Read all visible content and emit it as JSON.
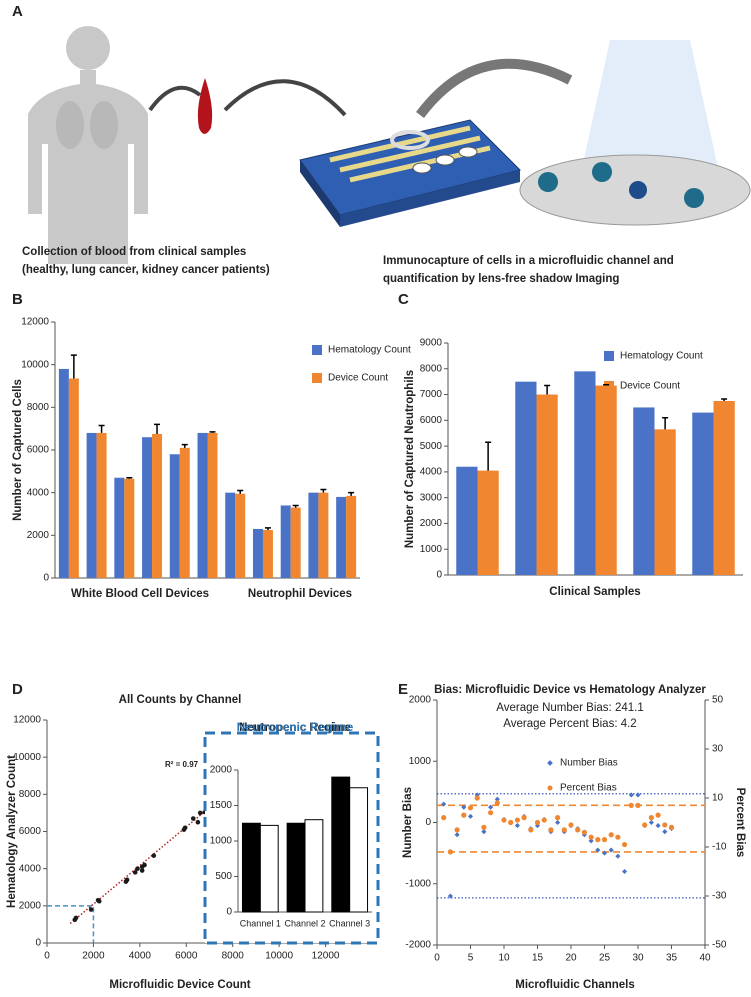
{
  "panel_a": {
    "label": "A",
    "captions": [
      "Collection of blood from clinical samples",
      "(healthy, lung cancer, kidney cancer patients)",
      "Immunocapture of cells in a microfluidic channel and",
      "quantification by lens-free shadow Imaging"
    ]
  },
  "chart_data": [
    {
      "type": "bar",
      "label": "B",
      "y_label": "Number of Captured Cells",
      "group_labels": [
        "White Blood Cell Devices",
        "Neutrophil Devices"
      ],
      "categories": [
        null,
        null,
        null,
        null,
        null,
        null,
        null,
        null,
        null,
        null,
        null
      ],
      "series": [
        {
          "name": "Hematology Count",
          "color": "#4a72c6",
          "values": [
            9800,
            6800,
            4700,
            6600,
            5800,
            6800,
            4000,
            2300,
            3400,
            4000,
            3800
          ]
        },
        {
          "name": "Device Count",
          "color": "#f0862f",
          "values": [
            9350,
            6800,
            4650,
            6750,
            6100,
            6800,
            3950,
            2250,
            3300,
            4000,
            3850
          ],
          "errors": [
            1100,
            350,
            50,
            450,
            150,
            50,
            150,
            100,
            100,
            150,
            150
          ]
        }
      ],
      "ylim": [
        0,
        12000
      ],
      "yticks": [
        0,
        2000,
        4000,
        6000,
        8000,
        10000,
        12000
      ]
    },
    {
      "type": "bar",
      "label": "C",
      "y_label": "Number of Captured Neutrophils",
      "x_label": "Clinical   Samples",
      "categories": [
        null,
        null,
        null,
        null,
        null
      ],
      "series": [
        {
          "name": "Hematology Count",
          "color": "#4a72c6",
          "values": [
            4200,
            7500,
            7900,
            6500,
            6300
          ]
        },
        {
          "name": "Device Count",
          "color": "#f0862f",
          "values": [
            4050,
            7000,
            7350,
            5650,
            6750
          ],
          "errors": [
            1100,
            350,
            30,
            450,
            80
          ]
        }
      ],
      "ylim": [
        0,
        9000
      ],
      "yticks": [
        0,
        1000,
        2000,
        3000,
        4000,
        5000,
        6000,
        7000,
        8000,
        9000
      ]
    },
    {
      "type": "scatter",
      "label": "D",
      "title": "All Counts by Channel",
      "x_label": "Microfluidic Device Count",
      "y_label": "Hematology Analyzer Count",
      "annotation": "R² = 0.97",
      "x": [
        1200,
        1250,
        1900,
        2200,
        2250,
        3400,
        3450,
        3800,
        3900,
        4100,
        4100,
        4200,
        4600,
        5900,
        5950,
        6300,
        6500,
        6600,
        6800,
        6900,
        6900,
        7400,
        7600,
        9800,
        9800
      ],
      "series": [
        {
          "color": "#1a1a1a",
          "marker": "circle",
          "values": [
            1250,
            1350,
            1800,
            2300,
            2250,
            3300,
            3400,
            3800,
            4000,
            3900,
            4100,
            4200,
            4700,
            6100,
            6200,
            6700,
            6500,
            7000,
            7050,
            6800,
            7050,
            7050,
            7300,
            10150,
            8600
          ]
        }
      ],
      "trendline": {
        "x": [
          1000,
          9800
        ],
        "y": [
          1050,
          10200
        ],
        "color": "#b22222"
      },
      "threshold": 2000,
      "threshold_color": "#4a90c8",
      "xlim": [
        0,
        14000
      ],
      "xticks": [
        0,
        2000,
        4000,
        6000,
        8000,
        10000,
        12000
      ],
      "ylim": [
        0,
        12000
      ],
      "yticks": [
        0,
        2000,
        4000,
        6000,
        8000,
        10000,
        12000
      ],
      "inset": {
        "type": "bar",
        "title": "Neutropenic Regime",
        "categories": [
          "Channel 1",
          "Channel 2",
          "Channel 3"
        ],
        "series": [
          {
            "color": "#000000",
            "values": [
              1250,
              1250,
              1900
            ]
          },
          {
            "color": "#ffffff",
            "values": [
              1220,
              1300,
              1750
            ]
          }
        ],
        "ylim": [
          0,
          2000
        ],
        "yticks": [
          0,
          500,
          1000,
          1500,
          2000
        ]
      }
    },
    {
      "type": "scatter",
      "label": "E",
      "title": "Bias: Microfluidic Device vs Hematology Analyzer",
      "subtitle": [
        "Average Number Bias: 241.1",
        "Average Percent Bias: 4.2"
      ],
      "x_label": "Microfluidic Channels",
      "y_label": "Number Bias",
      "y2_label": "Percent Bias",
      "x": [
        1,
        2,
        3,
        4,
        5,
        6,
        7,
        8,
        9,
        10,
        11,
        12,
        13,
        14,
        15,
        16,
        17,
        18,
        19,
        20,
        21,
        22,
        23,
        24,
        25,
        26,
        27,
        28,
        29,
        30,
        31,
        32,
        33,
        34,
        35
      ],
      "series": [
        {
          "name": "Number Bias",
          "color": "#4a72c6",
          "marker": "diamond",
          "values": [
            300,
            -1200,
            -200,
            250,
            100,
            450,
            -150,
            250,
            380,
            50,
            0,
            -50,
            100,
            -100,
            -50,
            50,
            -150,
            0,
            -150,
            -50,
            -100,
            -200,
            -300,
            -450,
            -500,
            -450,
            -550,
            -800,
            450,
            450,
            -50,
            0,
            -50,
            -150,
            -100
          ]
        },
        {
          "name": "Percent Bias",
          "color": "#f0862f",
          "marker": "circle",
          "axis": "y2",
          "values": [
            2,
            -12,
            -3,
            3,
            6,
            10,
            -2,
            4,
            8,
            1,
            0,
            1,
            2,
            -3,
            0,
            1,
            -3,
            2,
            -3,
            -1,
            -3,
            -4,
            -6,
            -7,
            -7,
            -5,
            -6,
            -9,
            7,
            7,
            -1,
            2,
            3,
            -1,
            -2
          ]
        }
      ],
      "reference_lines": [
        {
          "value": 470,
          "axis": "y",
          "color": "#3a5ac0",
          "style": "dotted"
        },
        {
          "value": -1230,
          "axis": "y",
          "color": "#3a5ac0",
          "style": "dotted"
        },
        {
          "value": 7,
          "axis": "y2",
          "color": "#f0862f",
          "style": "dashed"
        },
        {
          "value": -12,
          "axis": "y2",
          "color": "#f0862f",
          "style": "dashed"
        }
      ],
      "xlim": [
        0,
        40
      ],
      "xticks": [
        0,
        5,
        10,
        15,
        20,
        25,
        30,
        35,
        40
      ],
      "ylim": [
        -2000,
        2000
      ],
      "yticks": [
        -2000,
        -1000,
        0,
        1000,
        2000
      ],
      "y2lim": [
        -50,
        50
      ],
      "y2ticks": [
        -50,
        -30,
        -10,
        10,
        30,
        50
      ]
    }
  ]
}
